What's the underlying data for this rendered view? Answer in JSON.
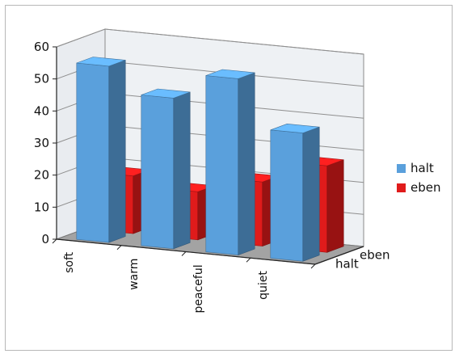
{
  "chart_data": {
    "type": "bar",
    "categories": [
      "soft",
      "warm",
      "peaceful",
      "quiet"
    ],
    "series": [
      {
        "name": "halt",
        "values": [
          55,
          47,
          55,
          40
        ],
        "color": "#5aa0dc"
      },
      {
        "name": "eben",
        "values": [
          18,
          15,
          20,
          27
        ],
        "color": "#e01b1b"
      }
    ],
    "depth_labels": [
      "halt",
      "eben"
    ],
    "ylim": [
      0,
      60
    ],
    "yticks": [
      "0",
      "10",
      "20",
      "30",
      "40",
      "50",
      "60"
    ],
    "grid": true,
    "legend_position": "right",
    "title": "",
    "xlabel": "",
    "ylabel": ""
  }
}
